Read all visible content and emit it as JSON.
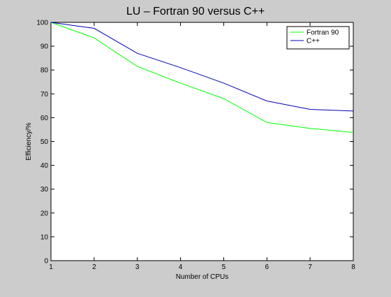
{
  "chart_data": {
    "type": "line",
    "title": "LU – Fortran 90 versus C++",
    "xlabel": "Number of CPUs",
    "ylabel": "Efficiency/%",
    "xlim": [
      1,
      8
    ],
    "ylim": [
      0,
      100
    ],
    "xticks": [
      1,
      2,
      3,
      4,
      5,
      6,
      7,
      8
    ],
    "yticks": [
      0,
      10,
      20,
      30,
      40,
      50,
      60,
      70,
      80,
      90,
      100
    ],
    "grid": false,
    "legend_position": "top-right",
    "x": [
      1,
      2,
      3,
      4,
      5,
      6,
      7,
      8
    ],
    "series": [
      {
        "name": "Fortran 90",
        "color": "#00ff00",
        "values": [
          100,
          93.5,
          81.5,
          74.5,
          68,
          58,
          55.5,
          53.8
        ]
      },
      {
        "name": "C++",
        "color": "#0000b0",
        "values": [
          100,
          97.5,
          87,
          81,
          74.5,
          67,
          63.5,
          62.8
        ]
      }
    ]
  }
}
